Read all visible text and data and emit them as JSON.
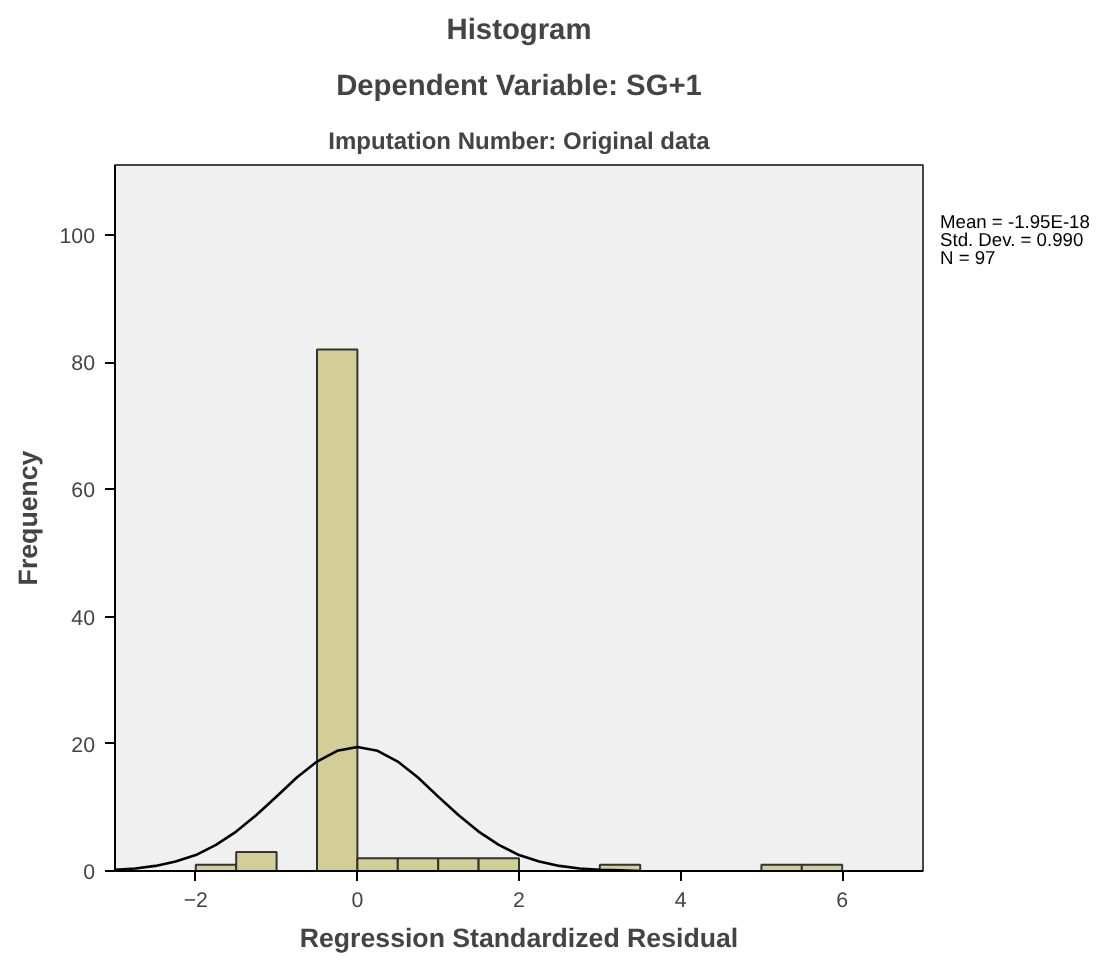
{
  "chart_data": {
    "type": "histogram",
    "title": "Histogram",
    "subtitle": "Dependent Variable: SG+1",
    "xlabel": "Regression Standardized Residual",
    "ylabel": "Frequency",
    "annotations": [
      "Imputation Number: Original data",
      "Mean = -1.95E-18",
      "Std. Dev. = 0.990",
      "N = 97"
    ],
    "xlim": [
      -3,
      7
    ],
    "xticks": [
      -2,
      0,
      2,
      4,
      6
    ],
    "ylim": [
      0,
      111
    ],
    "yticks": [
      0,
      20,
      40,
      60,
      80,
      100
    ],
    "grid": false,
    "series": [
      {
        "type": "histogram",
        "color": "#d3ce97",
        "bins": [
          -2,
          -1.5,
          -1,
          -0.5,
          0,
          0.5,
          1,
          1.5,
          2,
          2.5,
          3,
          3.5,
          4,
          4.5,
          5,
          5.5,
          6
        ],
        "values": [
          1,
          3,
          0,
          82,
          2,
          2,
          2,
          2,
          0,
          0,
          1,
          0,
          0,
          0,
          1,
          1
        ]
      },
      {
        "type": "line",
        "color": "#000000",
        "x": [
          -3,
          -2.75,
          -2.5,
          -2.25,
          -2,
          -1.75,
          -1.5,
          -1.25,
          -1,
          -0.75,
          -0.5,
          -0.25,
          0,
          0.25,
          0.5,
          0.75,
          1,
          1.25,
          1.5,
          1.75,
          2,
          2.25,
          2.5,
          2.75,
          3,
          3.25,
          3.5
        ],
        "values": [
          0.2,
          0.4,
          0.8,
          1.5,
          2.5,
          4.1,
          6.2,
          8.8,
          11.7,
          14.7,
          17.2,
          18.9,
          19.5,
          18.9,
          17.2,
          14.7,
          11.7,
          8.8,
          6.2,
          4.1,
          2.5,
          1.5,
          0.8,
          0.4,
          0.2,
          0.1,
          0
        ]
      }
    ]
  }
}
